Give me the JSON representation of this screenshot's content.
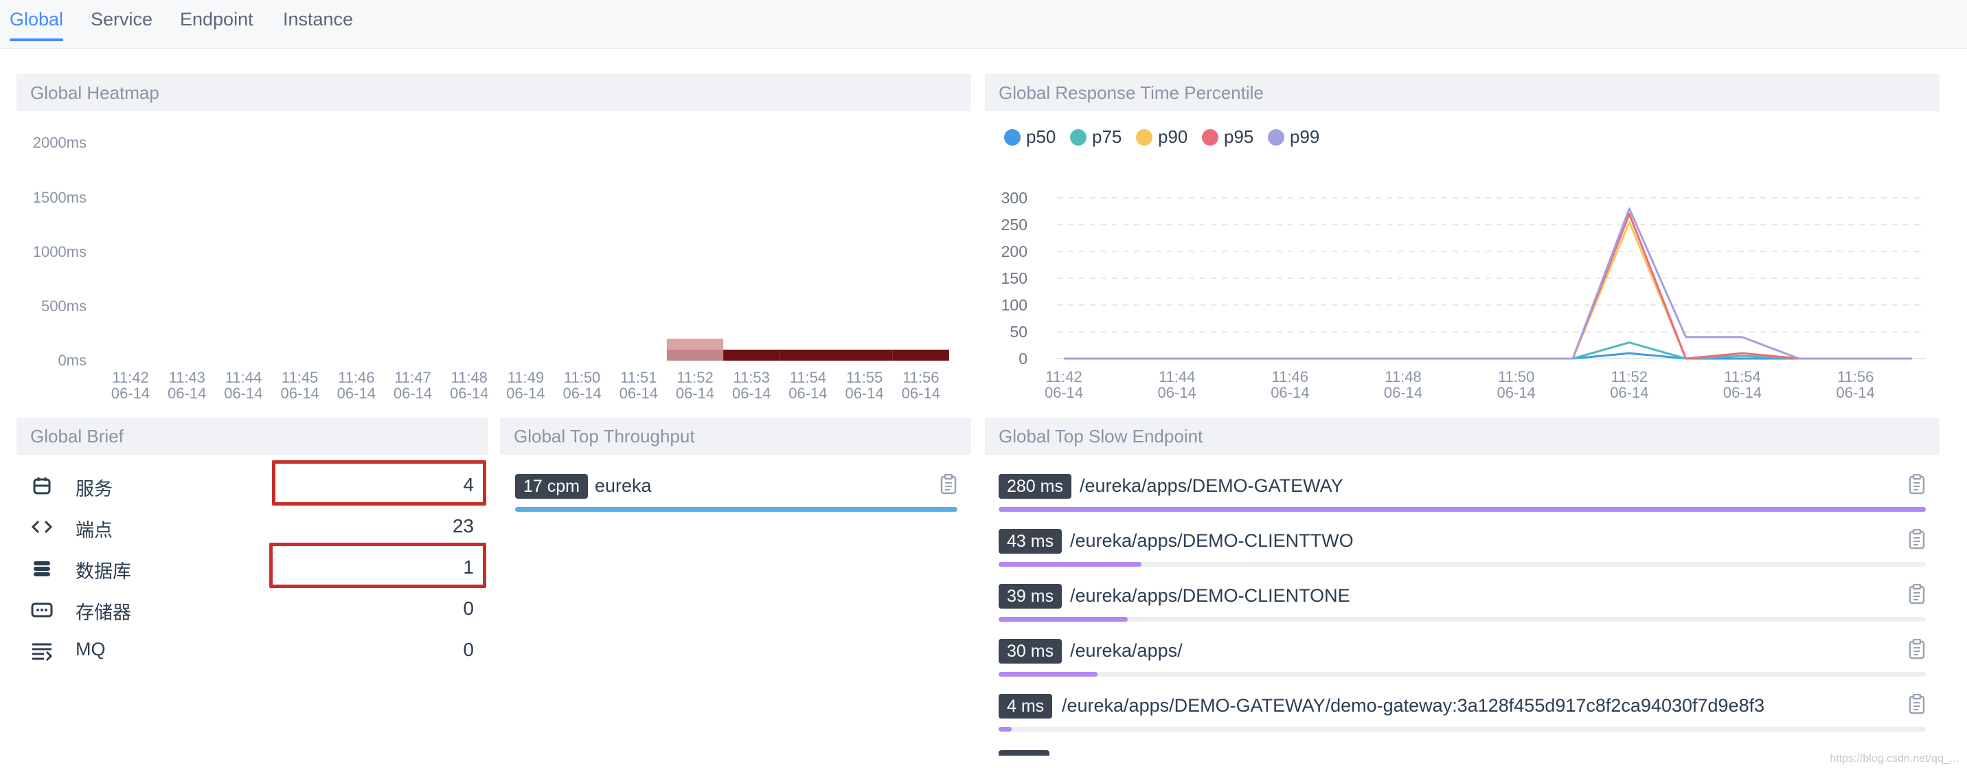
{
  "tabs": [
    "Global",
    "Service",
    "Endpoint",
    "Instance"
  ],
  "active_tab": "Global",
  "panels": {
    "heatmap_title": "Global Heatmap",
    "percentile_title": "Global Response Time Percentile",
    "brief_title": "Global Brief",
    "throughput_title": "Global Top Throughput",
    "slow_title": "Global Top Slow Endpoint"
  },
  "heatmap": {
    "y_labels": [
      "2000ms",
      "1500ms",
      "1000ms",
      "500ms",
      "0ms"
    ],
    "times": [
      "11:42",
      "11:43",
      "11:44",
      "11:45",
      "11:46",
      "11:47",
      "11:48",
      "11:49",
      "11:50",
      "11:51",
      "11:52",
      "11:53",
      "11:54",
      "11:55",
      "11:56"
    ],
    "date": "06-14",
    "cells": [
      {
        "time": "11:52",
        "bucket_ms": 200,
        "intensity": 0.18
      },
      {
        "time": "11:52",
        "bucket_ms": 0,
        "intensity": 0.35
      },
      {
        "time": "11:53",
        "bucket_ms": 0,
        "intensity": 1.0
      },
      {
        "time": "11:54",
        "bucket_ms": 0,
        "intensity": 1.0
      },
      {
        "time": "11:55",
        "bucket_ms": 0,
        "intensity": 1.0
      },
      {
        "time": "11:56",
        "bucket_ms": 0,
        "intensity": 1.0
      }
    ],
    "color_low": "#f2c4c4",
    "color_high": "#6b1016"
  },
  "chart_data": {
    "type": "line",
    "title": "Global Response Time Percentile",
    "x": [
      "11:42",
      "11:43",
      "11:44",
      "11:45",
      "11:46",
      "11:47",
      "11:48",
      "11:49",
      "11:50",
      "11:51",
      "11:52",
      "11:53",
      "11:54",
      "11:55",
      "11:56",
      "11:57"
    ],
    "x_tick_labels": [
      "11:42",
      "11:44",
      "11:46",
      "11:48",
      "11:50",
      "11:52",
      "11:54",
      "11:56"
    ],
    "x_sublabel": "06-14",
    "y_ticks": [
      0,
      50,
      100,
      150,
      200,
      250,
      300
    ],
    "ylim": [
      0,
      300
    ],
    "grid": true,
    "legend_position": "top-left",
    "series": [
      {
        "name": "p50",
        "color": "#3f9be8",
        "values": [
          0,
          0,
          0,
          0,
          0,
          0,
          0,
          0,
          0,
          0,
          10,
          0,
          0,
          0,
          0,
          0
        ]
      },
      {
        "name": "p75",
        "color": "#4dbdb8",
        "values": [
          0,
          0,
          0,
          0,
          0,
          0,
          0,
          0,
          0,
          0,
          30,
          0,
          5,
          0,
          0,
          0
        ]
      },
      {
        "name": "p90",
        "color": "#f5c75a",
        "values": [
          0,
          0,
          0,
          0,
          0,
          0,
          0,
          0,
          0,
          0,
          255,
          0,
          10,
          0,
          0,
          0
        ]
      },
      {
        "name": "p95",
        "color": "#ec6a7c",
        "values": [
          0,
          0,
          0,
          0,
          0,
          0,
          0,
          0,
          0,
          0,
          270,
          0,
          10,
          0,
          0,
          0
        ]
      },
      {
        "name": "p99",
        "color": "#a3a0de",
        "values": [
          0,
          0,
          0,
          0,
          0,
          0,
          0,
          0,
          0,
          0,
          280,
          40,
          40,
          0,
          0,
          0
        ]
      }
    ]
  },
  "brief": [
    {
      "icon": "service-icon",
      "label": "服务",
      "value": "4",
      "highlight": true
    },
    {
      "icon": "endpoint-code-icon",
      "label": "端点",
      "value": "23",
      "highlight": false
    },
    {
      "icon": "database-icon",
      "label": "数据库",
      "value": "1",
      "highlight": true
    },
    {
      "icon": "storage-icon",
      "label": "存储器",
      "value": "0",
      "highlight": false
    },
    {
      "icon": "mq-icon",
      "label": "MQ",
      "value": "0",
      "highlight": false
    }
  ],
  "throughput": [
    {
      "badge": "17 cpm",
      "label": "eureka",
      "fill": 1.0,
      "color": "#59aee3"
    }
  ],
  "slow_endpoints": [
    {
      "badge": "280 ms",
      "label": "/eureka/apps/DEMO-GATEWAY",
      "fill": 1.0
    },
    {
      "badge": "43 ms",
      "label": "/eureka/apps/DEMO-CLIENTTWO",
      "fill": 0.154
    },
    {
      "badge": "39 ms",
      "label": "/eureka/apps/DEMO-CLIENTONE",
      "fill": 0.139
    },
    {
      "badge": "30 ms",
      "label": "/eureka/apps/",
      "fill": 0.107
    },
    {
      "badge": "4 ms",
      "label": "/eureka/apps/DEMO-GATEWAY/demo-gateway:3a128f455d917c8f2ca94030f7d9e8f3",
      "fill": 0.014
    }
  ],
  "slow_bar_color": "#b188f2",
  "watermark": "https://blog.csdn.net/qq_..."
}
